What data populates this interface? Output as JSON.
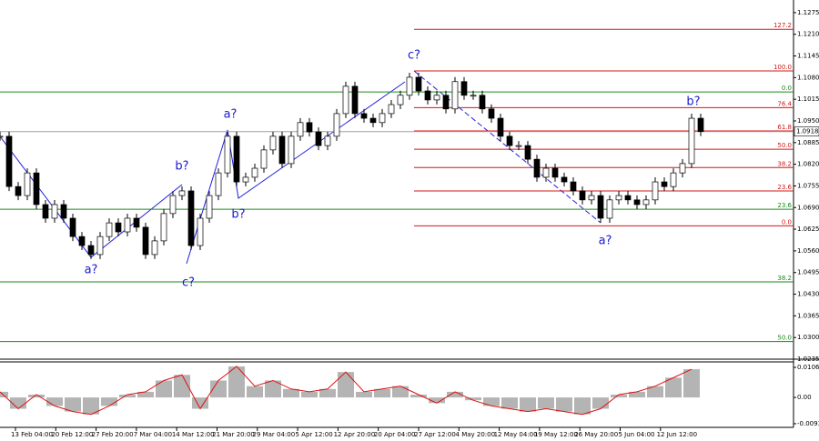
{
  "chart_data": {
    "type": "candlestick",
    "closes": [
      1.0904,
      1.0753,
      1.0726,
      1.0794,
      1.0699,
      1.0658,
      1.0699,
      1.0658,
      1.0603,
      1.0576,
      1.0549,
      1.0603,
      1.0644,
      1.0617,
      1.0658,
      1.0631,
      1.0549,
      1.059,
      1.0672,
      1.0726,
      1.074,
      1.0576,
      1.0658,
      1.0726,
      1.0794,
      1.0904,
      1.0767,
      1.0781,
      1.0808,
      1.0863,
      1.0904,
      1.0822,
      1.0904,
      1.0945,
      1.0917,
      1.0876,
      1.0904,
      1.0972,
      1.1054,
      1.0972,
      1.0958,
      1.0945,
      1.0972,
      1.0999,
      1.1027,
      1.1081,
      1.104,
      1.1013,
      1.1027,
      1.0986,
      1.1068,
      1.1027,
      1.1027,
      1.0986,
      1.0958,
      1.0904,
      1.0876,
      1.0876,
      1.0835,
      1.0781,
      1.0808,
      1.0781,
      1.0767,
      1.074,
      1.0713,
      1.0726,
      1.0658,
      1.0713,
      1.0726,
      1.0713,
      1.0699,
      1.0713,
      1.0767,
      1.0753,
      1.0794,
      1.0822,
      1.0958,
      1.0918
    ],
    "ylim": [
      1.0235,
      1.1302
    ],
    "yticks": [
      {
        "value": 1.1275,
        "label": "1.1275"
      },
      {
        "value": 1.121,
        "label": "1.1210"
      },
      {
        "value": 1.1145,
        "label": "1.1145"
      },
      {
        "value": 1.108,
        "label": "1.1080"
      },
      {
        "value": 1.1015,
        "label": "1.1015"
      },
      {
        "value": 1.095,
        "label": "1.0950"
      },
      {
        "value": 1.0885,
        "label": "1.0885"
      },
      {
        "value": 1.082,
        "label": "1.0820"
      },
      {
        "value": 1.0755,
        "label": "1.0755"
      },
      {
        "value": 1.069,
        "label": "1.0690"
      },
      {
        "value": 1.0625,
        "label": "1.0625"
      },
      {
        "value": 1.056,
        "label": "1.0560"
      },
      {
        "value": 1.0495,
        "label": "1.0495"
      },
      {
        "value": 1.043,
        "label": "1.0430"
      },
      {
        "value": 1.0365,
        "label": "1.0365"
      },
      {
        "value": 1.03,
        "label": "1.0300"
      },
      {
        "value": 1.0235,
        "label": "1.0235"
      }
    ],
    "current_price": {
      "value": 1.0918,
      "label": "1.0918"
    },
    "levels": [
      {
        "label": "127.2",
        "value": 1.1225,
        "color": "#d01818",
        "scope": "recent"
      },
      {
        "label": "100.0",
        "value": 1.11,
        "color": "#d01818",
        "scope": "recent"
      },
      {
        "label": "76.4",
        "value": 1.099,
        "color": "#d01818",
        "scope": "recent"
      },
      {
        "label": "61.8",
        "value": 1.092,
        "color": "#d01818",
        "scope": "recent"
      },
      {
        "label": "50.0",
        "value": 1.0865,
        "color": "#d01818",
        "scope": "recent"
      },
      {
        "label": "38.2",
        "value": 1.081,
        "color": "#d01818",
        "scope": "recent"
      },
      {
        "label": "23.6",
        "value": 1.074,
        "color": "#d01818",
        "scope": "recent"
      },
      {
        "label": "0.0",
        "value": 1.0635,
        "color": "#d01818",
        "scope": "recent"
      },
      {
        "label": "0.0",
        "value": 1.1037,
        "color": "#1a8a1a",
        "scope": "full"
      },
      {
        "label": "23.6",
        "value": 1.0685,
        "color": "#1a8a1a",
        "scope": "full"
      },
      {
        "label": "38.2",
        "value": 1.0467,
        "color": "#1a8a1a",
        "scope": "full"
      },
      {
        "label": "50.0",
        "value": 1.0288,
        "color": "#1a8a1a",
        "scope": "full"
      }
    ],
    "wave_labels": [
      "a?",
      "b?",
      "c?",
      "a?",
      "b?",
      "c?",
      "a?",
      "b?"
    ],
    "x_labels": [
      "13 Feb 04:00",
      "20 Feb 12:00",
      "27 Feb 20:00",
      "7 Mar 04:00",
      "14 Mar 12:00",
      "21 Mar 20:00",
      "29 Mar 04:00",
      "5 Apr 12:00",
      "12 Apr 20:00",
      "20 Apr 04:00",
      "27 Apr 12:00",
      "4 May 20:00",
      "12 May 04:00",
      "19 May 12:00",
      "26 May 20:00",
      "5 Jun 04:00",
      "12 Jun 12:00"
    ],
    "oscillator": {
      "values": [
        0.002,
        -0.004,
        0.001,
        -0.003,
        -0.005,
        -0.006,
        -0.003,
        0.001,
        0.002,
        0.006,
        0.008,
        -0.004,
        0.006,
        0.011,
        0.004,
        0.006,
        0.003,
        0.002,
        0.003,
        0.009,
        0.002,
        0.003,
        0.004,
        0.001,
        -0.002,
        0.002,
        -0.001,
        -0.003,
        -0.004,
        -0.005,
        -0.004,
        -0.005,
        -0.006,
        -0.004,
        0.001,
        0.002,
        0.004,
        0.007,
        0.01
      ],
      "bar_color": "#b4b4b4",
      "line_color": "#e01010",
      "ylim": [
        -0.0106,
        0.0126
      ],
      "yticks": [
        0.01065,
        {
          "value": 0,
          "label": "0.00"
        },
        -0.0093
      ]
    }
  }
}
